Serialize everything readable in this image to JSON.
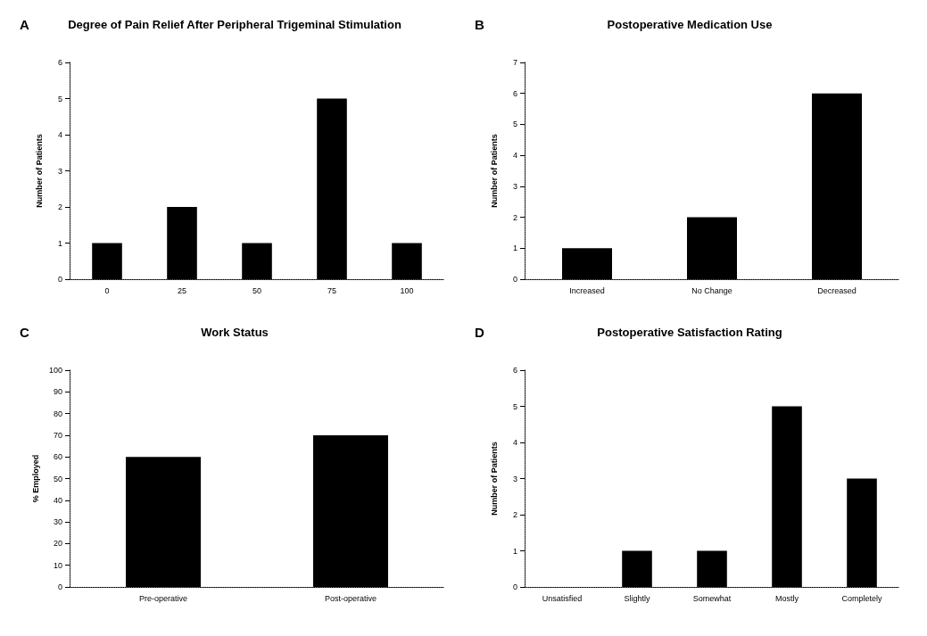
{
  "chart_data": [
    {
      "type": "bar",
      "title": "Degree of Pain Relief After Peripheral Trigeminal Stimulation",
      "annotations": [
        "A"
      ],
      "ylabel": "Number of Patients",
      "categories": [
        "0",
        "25",
        "50",
        "75",
        "100"
      ],
      "values": [
        1,
        2,
        1,
        5,
        1
      ],
      "color": "#000000",
      "ylim": [
        0,
        6
      ],
      "yticks": [
        0,
        1,
        2,
        3,
        4,
        5,
        6
      ]
    },
    {
      "type": "bar",
      "title": "Postoperative Medication Use",
      "annotations": [
        "B"
      ],
      "ylabel": "Number of Patients",
      "categories": [
        "Increased",
        "No Change",
        "Decreased"
      ],
      "values": [
        1,
        2,
        6
      ],
      "color": "#000000",
      "ylim": [
        0,
        7
      ],
      "yticks": [
        0,
        1,
        2,
        3,
        4,
        5,
        6,
        7
      ]
    },
    {
      "type": "bar",
      "title": "Work Status",
      "annotations": [
        "C"
      ],
      "ylabel": "% Employed",
      "categories": [
        "Pre-operative",
        "Post-operative"
      ],
      "values": [
        60,
        70
      ],
      "color": "#000000",
      "ylim": [
        0,
        100
      ],
      "yticks": [
        0,
        10,
        20,
        30,
        40,
        50,
        60,
        70,
        80,
        90,
        100
      ]
    },
    {
      "type": "bar",
      "title": "Postoperative Satisfaction Rating",
      "annotations": [
        "D"
      ],
      "ylabel": "Number of Patients",
      "categories": [
        "Unsatisfied",
        "Slightly",
        "Somewhat",
        "Mostly",
        "Completely"
      ],
      "values": [
        0,
        1,
        1,
        5,
        3
      ],
      "color": "#000000",
      "ylim": [
        0,
        6
      ],
      "yticks": [
        0,
        1,
        2,
        3,
        4,
        5,
        6
      ]
    }
  ]
}
